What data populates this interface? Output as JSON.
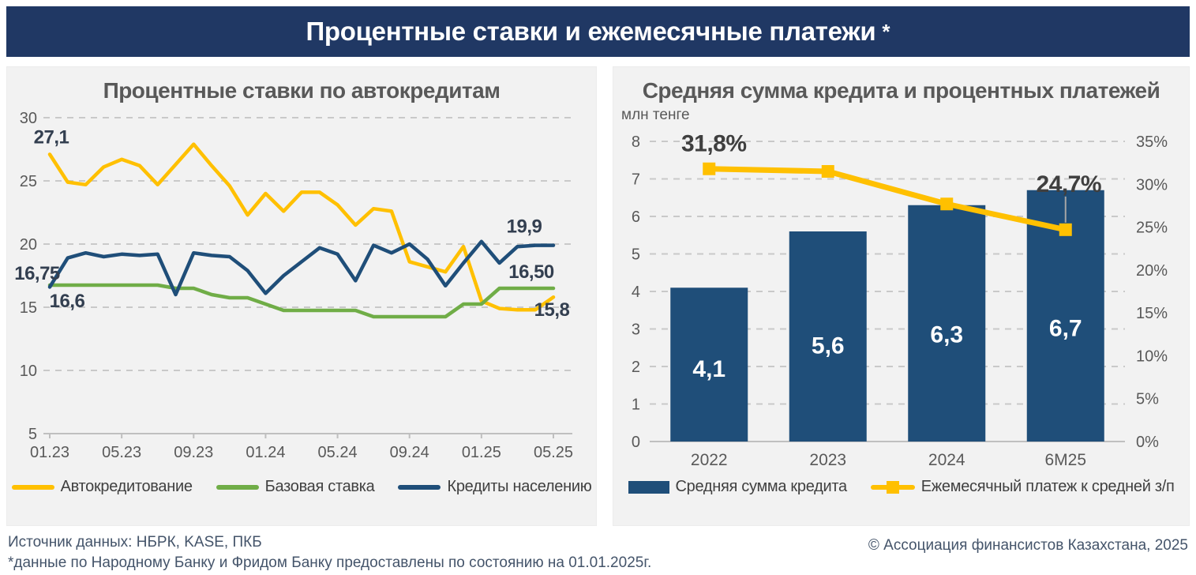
{
  "header": {
    "title": "Процентные ставки и ежемесячные платежи",
    "asterisk": "*"
  },
  "colors": {
    "header_bg": "#203864",
    "panel_bg": "#F2F2F2",
    "autoloan_line": "#FFC000",
    "base_rate_line": "#70AD47",
    "retail_loans_line": "#1F4E79",
    "bar_fill": "#1F4E79",
    "payment_line": "#FFC000",
    "grid": "#C9C9C9",
    "axis_text": "#595959"
  },
  "chart_data": [
    {
      "type": "line",
      "title": "Процентные ставки по автокредитам",
      "x_monthly": [
        "01.23",
        "02.23",
        "03.23",
        "04.23",
        "05.23",
        "06.23",
        "07.23",
        "08.23",
        "09.23",
        "10.23",
        "11.23",
        "12.23",
        "01.24",
        "02.24",
        "03.24",
        "04.24",
        "05.24",
        "06.24",
        "07.24",
        "08.24",
        "09.24",
        "10.24",
        "11.24",
        "12.24",
        "01.25",
        "02.25",
        "03.25",
        "04.25",
        "05.25"
      ],
      "x_tick_labels": [
        "01.23",
        "05.23",
        "09.23",
        "01.24",
        "05.24",
        "09.24",
        "01.25",
        "05.25"
      ],
      "ylim": [
        5,
        30
      ],
      "yticks": [
        30,
        25,
        20,
        15,
        10,
        5
      ],
      "grid": "horizontal-dashed",
      "legend_position": "bottom",
      "series": [
        {
          "name": "Автокредитование",
          "color": "#FFC000",
          "values": [
            27.1,
            24.9,
            24.7,
            26.1,
            26.7,
            26.2,
            24.7,
            26.3,
            27.9,
            26.2,
            24.6,
            22.3,
            24.0,
            22.6,
            24.1,
            24.1,
            23.1,
            21.5,
            22.8,
            22.6,
            18.6,
            18.2,
            17.8,
            19.8,
            15.5,
            14.9,
            14.8,
            14.8,
            15.8
          ],
          "start_label": "27,1",
          "end_label": "15,8"
        },
        {
          "name": "Базовая ставка",
          "color": "#70AD47",
          "values": [
            16.75,
            16.75,
            16.75,
            16.75,
            16.75,
            16.75,
            16.75,
            16.5,
            16.5,
            16.0,
            15.75,
            15.75,
            15.25,
            14.75,
            14.75,
            14.75,
            14.75,
            14.75,
            14.25,
            14.25,
            14.25,
            14.25,
            14.25,
            15.25,
            15.25,
            16.5,
            16.5,
            16.5,
            16.5
          ],
          "start_label": "16,75",
          "end_label": "16,50"
        },
        {
          "name": "Кредиты населению",
          "color": "#1F4E79",
          "values": [
            16.6,
            18.9,
            19.3,
            19.0,
            19.2,
            19.1,
            19.2,
            16.0,
            19.3,
            19.1,
            19.0,
            17.9,
            16.1,
            17.5,
            18.6,
            19.7,
            19.2,
            17.1,
            19.9,
            19.3,
            20.0,
            18.8,
            16.7,
            18.5,
            20.2,
            18.5,
            19.8,
            19.9,
            19.9
          ],
          "start_label": "16,6",
          "end_label": "19,9"
        }
      ]
    },
    {
      "type": "bar+line",
      "title": "Средняя сумма кредита и процентных платежей",
      "units_label": "млн тенге",
      "categories": [
        "2022",
        "2023",
        "2024",
        "6М25"
      ],
      "bar_series": {
        "name": "Средняя сумма кредита",
        "color": "#1F4E79",
        "values": [
          4.1,
          5.6,
          6.3,
          6.7
        ],
        "labels": [
          "4,1",
          "5,6",
          "6,3",
          "6,7"
        ]
      },
      "line_series": {
        "name": "Ежемесячный платеж к средней з/п",
        "color": "#FFC000",
        "values_pct": [
          31.8,
          31.5,
          27.7,
          24.7
        ],
        "first_label": "31,8%",
        "last_label": "24,7%"
      },
      "left_axis": {
        "range": [
          0,
          8
        ],
        "ticks": [
          8,
          7,
          6,
          5,
          4,
          3,
          2,
          1,
          0
        ]
      },
      "right_axis": {
        "range_pct": [
          0,
          35
        ],
        "ticks": [
          "35%",
          "30%",
          "25%",
          "20%",
          "15%",
          "10%",
          "5%",
          "0%"
        ]
      },
      "grid": "horizontal-dashed",
      "legend_position": "bottom"
    }
  ],
  "footer": {
    "source": "Источник данных: НБРК, KASE, ПКБ",
    "footnote": "*данные по Народному Банку и Фридом Банку предоставлены по состоянию на 01.01.2025г.",
    "copyright": "© Ассоциация финансистов Казахстана, 2025"
  }
}
